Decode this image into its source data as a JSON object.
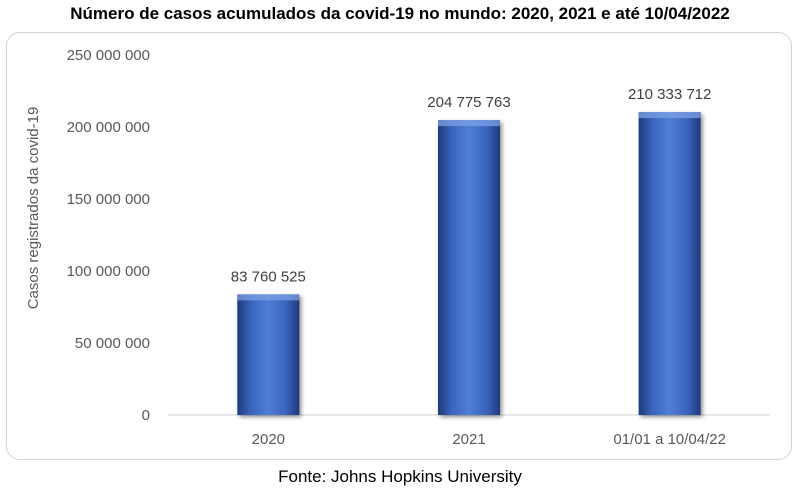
{
  "chart_data": {
    "type": "bar",
    "title": "Número de casos acumulados da covid-19 no mundo: 2020, 2021 e até 10/04/2022",
    "xlabel": "",
    "ylabel": "Casos registrados da covid-19",
    "categories": [
      "2020",
      "2021",
      "01/01 a 10/04/22"
    ],
    "values": [
      83760525,
      204775763,
      210333712
    ],
    "value_labels": [
      "83 760 525",
      "204 775 763",
      "210 333 712"
    ],
    "ylim": [
      0,
      250000000
    ],
    "yticks": [
      0,
      50000000,
      100000000,
      150000000,
      200000000,
      250000000
    ],
    "ytick_labels": [
      "0",
      "50 000 000",
      "100 000 000",
      "150 000 000",
      "200 000 000",
      "250 000 000"
    ],
    "grid": false,
    "legend": "none",
    "bar_color": "#4472c4"
  },
  "source_note": "Fonte: Johns Hopkins University"
}
